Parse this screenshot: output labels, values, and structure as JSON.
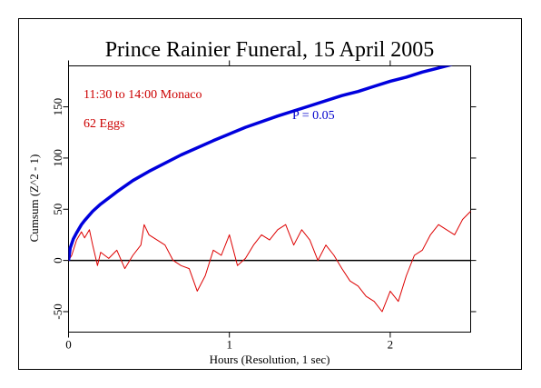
{
  "chart_data": {
    "type": "line",
    "title": "Prince Rainier Funeral, 15 April 2005",
    "xlabel": "Hours (Resolution, 1 sec)",
    "ylabel": "Cumsum (Z^2 - 1)",
    "xlim": [
      0,
      2.5
    ],
    "ylim": [
      -70,
      190
    ],
    "x_ticks": [
      0,
      1,
      2
    ],
    "x_tick_labels": [
      "0",
      "1",
      "2"
    ],
    "y_ticks": [
      -50,
      0,
      50,
      100,
      150
    ],
    "y_tick_labels": [
      "-50",
      "0",
      "50",
      "100",
      "150"
    ],
    "annotations": {
      "time": "11:30 to 14:00 Monaco",
      "eggs": "62 Eggs",
      "probability": "P = 0.05"
    },
    "colors": {
      "cumsum": "#dd0000",
      "probability": "#0000dd",
      "zero_line": "#000000",
      "annotation_red": "#cc0000",
      "annotation_blue": "#0000cc"
    },
    "series": [
      {
        "key": "cumsum",
        "x": [
          0,
          0.02,
          0.05,
          0.08,
          0.1,
          0.13,
          0.15,
          0.18,
          0.2,
          0.25,
          0.3,
          0.35,
          0.4,
          0.45,
          0.47,
          0.5,
          0.55,
          0.6,
          0.65,
          0.7,
          0.75,
          0.8,
          0.85,
          0.9,
          0.95,
          1.0,
          1.05,
          1.1,
          1.15,
          1.2,
          1.25,
          1.3,
          1.35,
          1.4,
          1.45,
          1.5,
          1.55,
          1.6,
          1.65,
          1.7,
          1.75,
          1.8,
          1.85,
          1.9,
          1.95,
          2.0,
          2.05,
          2.1,
          2.15,
          2.2,
          2.25,
          2.3,
          2.35,
          2.4,
          2.45,
          2.5
        ],
        "values": [
          0,
          5,
          20,
          28,
          22,
          30,
          15,
          -5,
          8,
          2,
          10,
          -8,
          5,
          15,
          35,
          25,
          20,
          15,
          0,
          -5,
          -8,
          -30,
          -15,
          10,
          5,
          25,
          -5,
          2,
          15,
          25,
          20,
          30,
          35,
          15,
          30,
          20,
          0,
          15,
          5,
          -8,
          -20,
          -25,
          -35,
          -40,
          -50,
          -30,
          -40,
          -15,
          5,
          10,
          25,
          35,
          30,
          25,
          40,
          48
        ]
      },
      {
        "key": "probability",
        "x": [
          0,
          0.01,
          0.03,
          0.05,
          0.08,
          0.1,
          0.15,
          0.2,
          0.3,
          0.4,
          0.5,
          0.7,
          0.9,
          1.1,
          1.3,
          1.5,
          1.7,
          1.8,
          1.9,
          2.0,
          2.1,
          2.2,
          2.3,
          2.4,
          2.5
        ],
        "values": [
          0,
          12,
          21,
          27,
          35,
          39,
          48,
          55,
          67,
          78,
          87,
          103,
          117,
          130,
          141,
          151,
          161,
          165,
          170,
          175,
          179,
          184,
          188,
          192,
          196
        ]
      }
    ]
  }
}
